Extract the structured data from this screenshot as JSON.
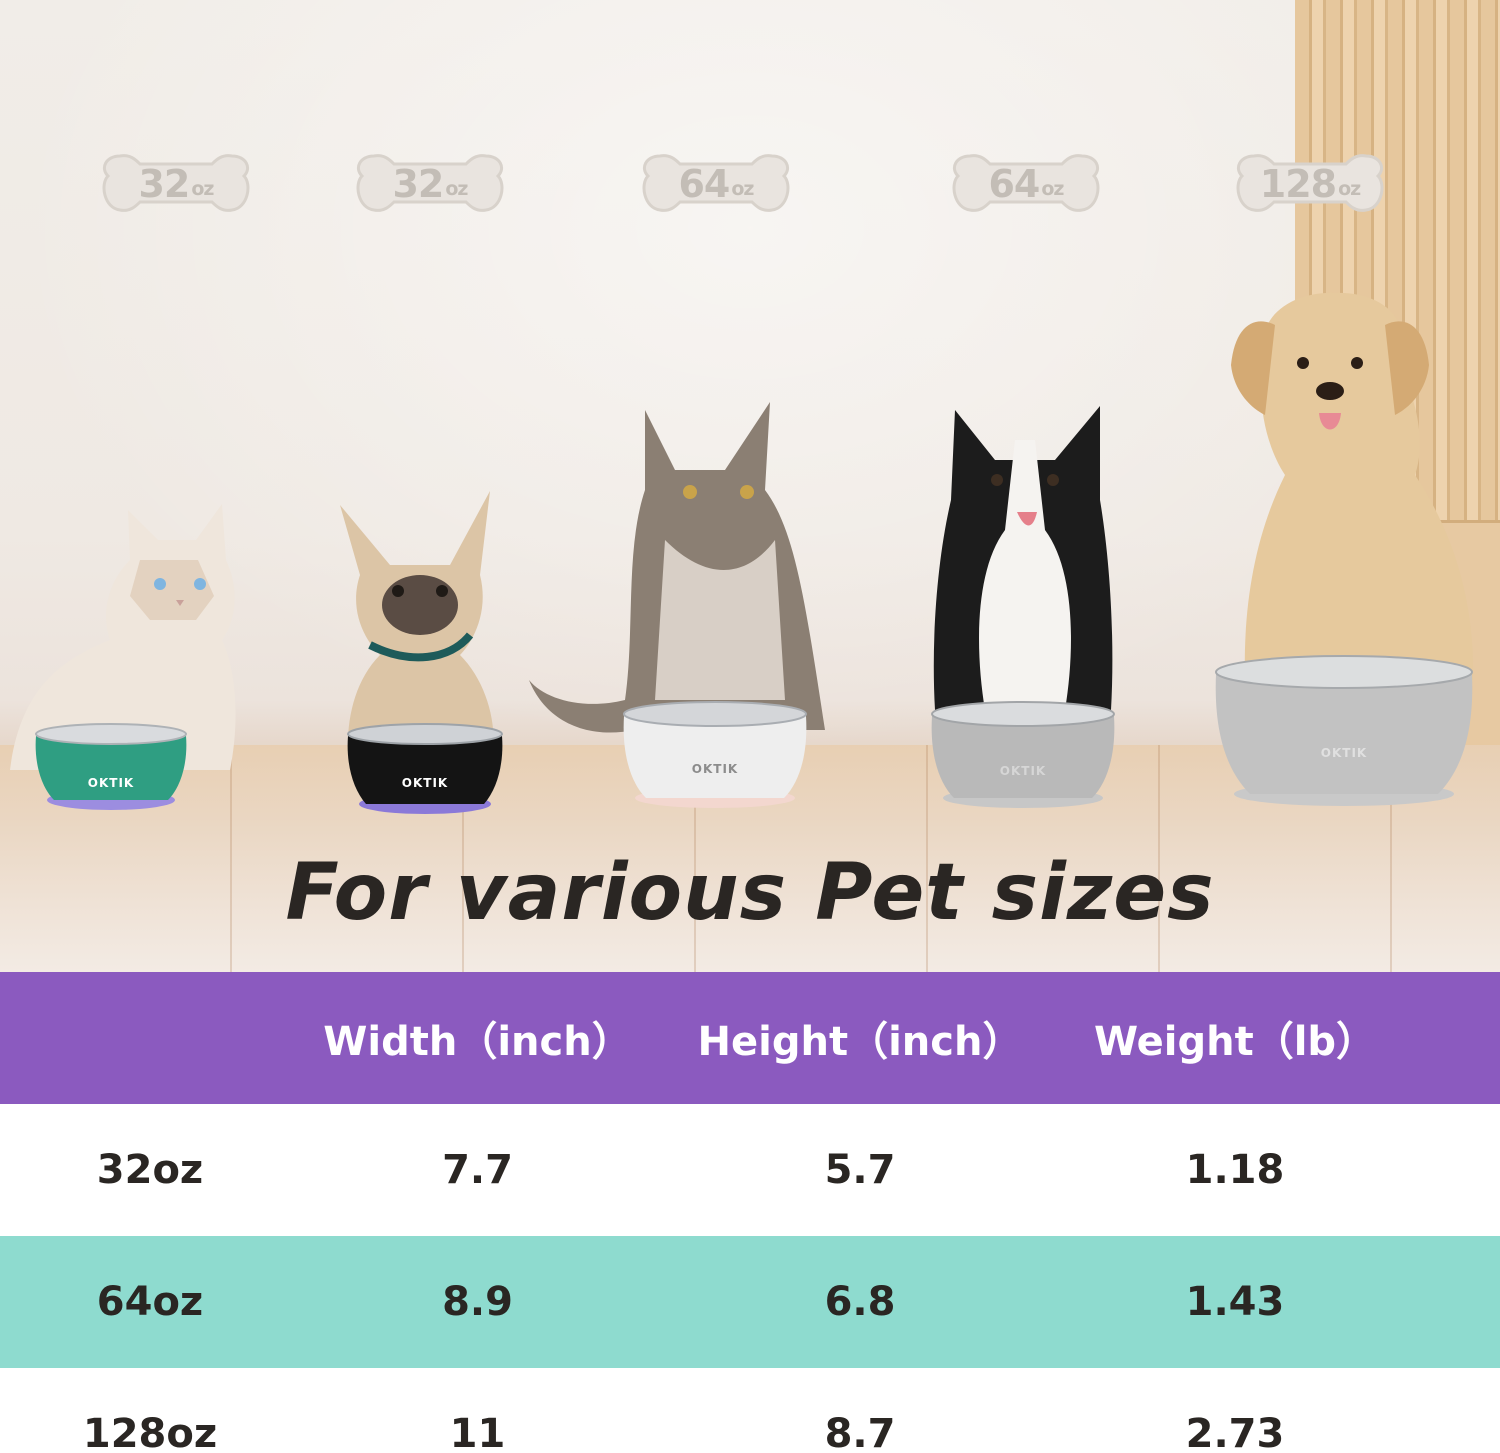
{
  "bone_tags": [
    {
      "value": "32",
      "unit": "oz"
    },
    {
      "value": "32",
      "unit": "oz"
    },
    {
      "value": "64",
      "unit": "oz"
    },
    {
      "value": "64",
      "unit": "oz"
    },
    {
      "value": "128",
      "unit": "oz"
    }
  ],
  "bowls": [
    {
      "brand": "OKTIK",
      "color": "#2f9e82"
    },
    {
      "brand": "OKTIK",
      "color": "#141414"
    },
    {
      "brand": "OKTIK",
      "color": "#eeeeee"
    },
    {
      "brand": "OKTIK",
      "color": "#b9b9b9"
    },
    {
      "brand": "OKTIK",
      "color": "#c2c2c2"
    }
  ],
  "headline": "For various Pet sizes",
  "table": {
    "headers": [
      "",
      "Width（inch）",
      "Height（inch）",
      "Weight（lb）"
    ],
    "rows": [
      [
        "32oz",
        "7.7",
        "5.7",
        "1.18"
      ],
      [
        "64oz",
        "8.9",
        "6.8",
        "1.43"
      ],
      [
        "128oz",
        "11",
        "8.7",
        "2.73"
      ]
    ]
  },
  "colors": {
    "header_bg": "#8b5abf",
    "alt_row_bg": "#8edbcf",
    "text": "#2a2623",
    "bone_text": "#c3bdb6"
  }
}
